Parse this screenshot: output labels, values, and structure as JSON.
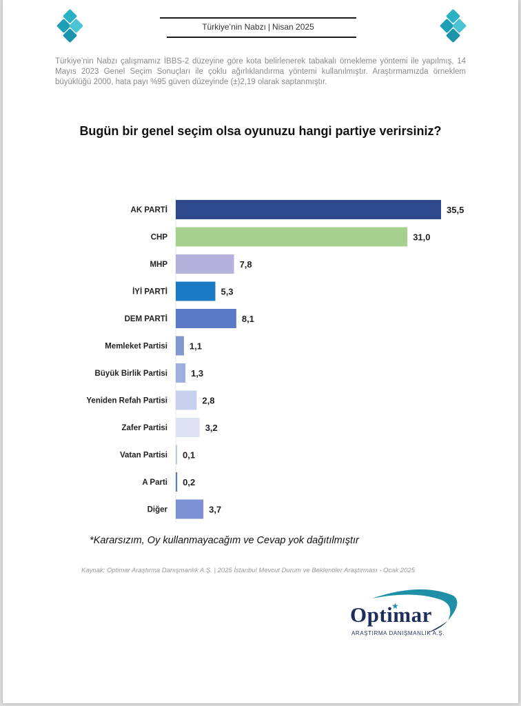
{
  "header": {
    "title_left": "Türkiye’nin Nabzı",
    "title_sep": "|",
    "title_right": "Nisan 2025"
  },
  "methodology": "Türkiye’nin Nabzı çalışmamız İBBS-2 düzeyine göre kota belirlenerek tabakalı örnekleme yöntemi ile yapılmış, 14 Mayıs 2023 Genel Seçim Sonuçları ile çoklu ağırlıklandırma yöntemi kullanılmıştır. Araştırmamızda örneklem büyüklüğü 2000, hata payı %95 güven düzeyinde (±)2,19 olarak saptanmıştır.",
  "note": "*Kararsızım, Oy kullanmayacağım ve Cevap yok dağıtılmıştır",
  "source": "Kaynak: Optimar Araştırma Danışmanlık A.Ş. | 2025 İstanbul Mevcut Durum ve Beklentiler Araştırması - Ocak 2025",
  "brand": {
    "name": "Optimar",
    "subtitle": "ARAŞTIRMA DANIŞMANLIK A.Ş."
  },
  "chart_data": {
    "type": "bar",
    "orientation": "horizontal",
    "title": "Bugün bir genel seçim olsa oyunuzu hangi partiye verirsiniz?",
    "categories": [
      "AK PARTİ",
      "CHP",
      "MHP",
      "İYİ PARTİ",
      "DEM PARTİ",
      "Memleket Partisi",
      "Büyük Birlik Partisi",
      "Yeniden Refah Partisi",
      "Zafer Partisi",
      "Vatan Partisi",
      "A Parti",
      "Diğer"
    ],
    "values": [
      35.5,
      31.0,
      7.8,
      5.3,
      8.1,
      1.1,
      1.3,
      2.8,
      3.2,
      0.1,
      0.2,
      3.7
    ],
    "value_labels": [
      "35,5",
      "31,0",
      "7,8",
      "5,3",
      "8,1",
      "1,1",
      "1,3",
      "2,8",
      "3,2",
      "0,1",
      "0,2",
      "3,7"
    ],
    "colors": [
      "#2e4a8c",
      "#a6d08d",
      "#b4b2dc",
      "#1a7bc4",
      "#5a79c7",
      "#8597d2",
      "#9eafdf",
      "#c6cfec",
      "#dfe3f3",
      "#b9c6ea",
      "#5a79c7",
      "#7a92d4"
    ],
    "xlim": [
      0,
      35.5
    ],
    "grid": false,
    "legend": "none"
  }
}
